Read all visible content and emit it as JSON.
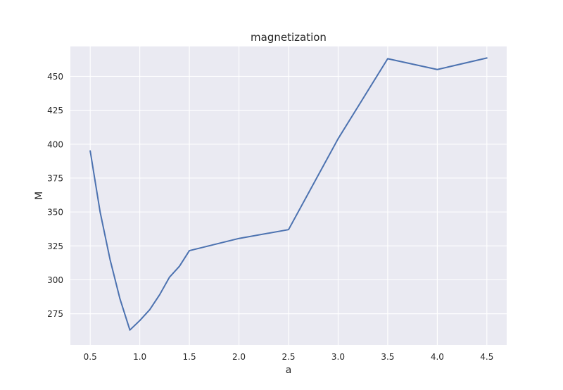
{
  "chart_data": {
    "type": "line",
    "title": "magnetization",
    "xlabel": "a",
    "ylabel": "M",
    "xlim": [
      0.3,
      4.7
    ],
    "ylim": [
      252,
      472
    ],
    "xticks": [
      0.5,
      1.0,
      1.5,
      2.0,
      2.5,
      3.0,
      3.5,
      4.0,
      4.5
    ],
    "xtick_labels": [
      "0.5",
      "1.0",
      "1.5",
      "2.0",
      "2.5",
      "3.0",
      "3.5",
      "4.0",
      "4.5"
    ],
    "yticks": [
      275,
      300,
      325,
      350,
      375,
      400,
      425,
      450
    ],
    "ytick_labels": [
      "275",
      "300",
      "325",
      "350",
      "375",
      "400",
      "425",
      "450"
    ],
    "grid": true,
    "series": [
      {
        "color": "#4c72b0",
        "x": [
          0.5,
          0.6,
          0.7,
          0.8,
          0.9,
          1.0,
          1.1,
          1.2,
          1.3,
          1.4,
          1.5,
          2.0,
          2.5,
          3.0,
          3.5,
          4.0,
          4.5
        ],
        "y": [
          395,
          350,
          315,
          286,
          263,
          270,
          278,
          289,
          302,
          310,
          321.5,
          330.5,
          337,
          404,
          463,
          455,
          463.5
        ]
      }
    ],
    "colors": {
      "background": "#eaeaf2",
      "grid": "#ffffff",
      "line": "#4c72b0"
    }
  }
}
